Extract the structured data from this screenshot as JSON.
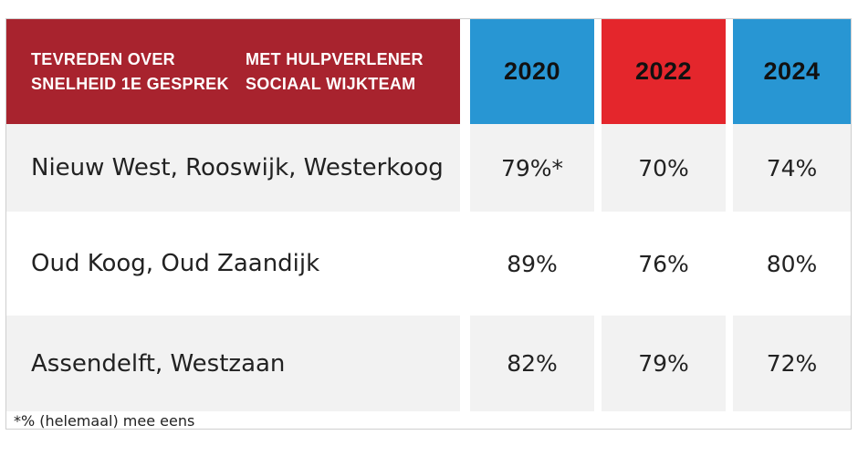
{
  "chart_data": {
    "type": "table",
    "title_lines": [
      "TEVREDEN OVER SNELHEID 1E GESPREK",
      "MET HULPVERLENER SOCIAAL WIJKTEAM"
    ],
    "columns": [
      {
        "label": "2020",
        "color": "#2896d3"
      },
      {
        "label": "2022",
        "color": "#e4262c"
      },
      {
        "label": "2024",
        "color": "#2896d3"
      }
    ],
    "rows": [
      {
        "label": "Nieuw West, Rooswijk, Westerkoog",
        "values": [
          "79%*",
          "70%",
          "74%"
        ],
        "shade": "#f2f2f2"
      },
      {
        "label": "Oud Koog, Oud Zaandijk",
        "values": [
          "89%",
          "76%",
          "80%"
        ],
        "shade": "#ffffff"
      },
      {
        "label": "Assendelft, Westzaan",
        "values": [
          "82%",
          "79%",
          "72%"
        ],
        "shade": "#f2f2f2"
      }
    ],
    "footnote": "*% (helemaal) mee eens",
    "colors": {
      "header_label_bg": "#a8232e"
    }
  }
}
